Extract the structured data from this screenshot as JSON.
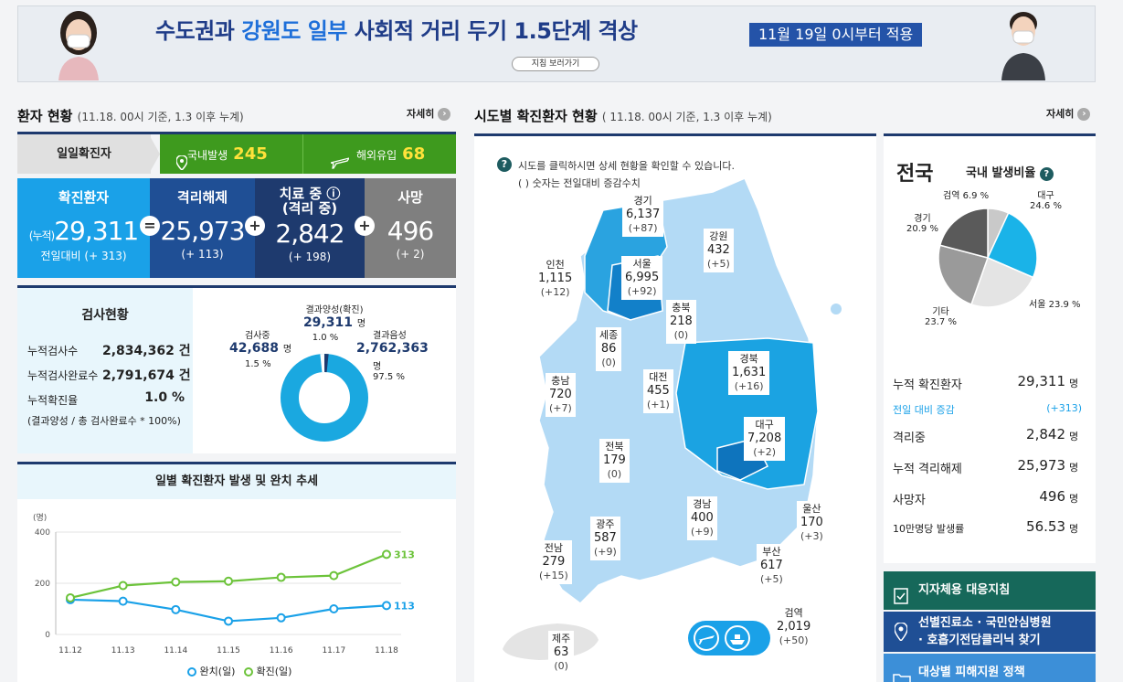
{
  "banner": {
    "title_a": "수도권과 ",
    "title_b": "강원도 일부",
    "title_c": " 사회적 거리 두기 1.5단계 격상",
    "date": "11월 19일 0시부터 적용",
    "button": "지침 보러가기"
  },
  "patient": {
    "title": "환자 현황",
    "sub": "(11.18. 00시 기준, 1.3 이후 누계)",
    "more": "자세히",
    "daily_label": "일일확진자",
    "domestic_label": "국내발생",
    "domestic_value": "245",
    "overseas_label": "해외유입",
    "overseas_value": "68"
  },
  "stats": [
    {
      "label": "확진환자",
      "prefix": "(누적)",
      "value": "29,311",
      "sub": "전일대비 (+ 313)",
      "color": "#1aa1e8"
    },
    {
      "label": "격리해제",
      "prefix": "",
      "value": "25,973",
      "sub": "(+ 113)",
      "color": "#1f4f95"
    },
    {
      "label": "치료 중 ⓘ",
      "label2": "(격리 중)",
      "prefix": "",
      "value": "2,842",
      "sub": "(+ 198)",
      "color": "#1e3a6e"
    },
    {
      "label": "사망",
      "prefix": "",
      "value": "496",
      "sub": "(+ 2)",
      "color": "#7f7f7f"
    }
  ],
  "operators": [
    "=",
    "+",
    "+"
  ],
  "tests": {
    "title": "검사현황",
    "rows": [
      {
        "label": "누적검사수",
        "value": "2,834,362 건"
      },
      {
        "label": "누적검사완료수",
        "value": "2,791,674 건"
      },
      {
        "label": "누적확진율",
        "value": "1.0 %"
      }
    ],
    "note": "(결과양성 / 총 검사완료수 * 100%)",
    "donut": {
      "positive_label": "결과양성(확진)",
      "positive_value": "29,311",
      "positive_unit": "명",
      "positive_pct": "1.0 %",
      "testing_label": "검사중",
      "testing_value": "42,688",
      "testing_unit": "명",
      "testing_pct": "1.5 %",
      "negative_label": "결과음성",
      "negative_value": "2,762,363",
      "negative_unit": "명",
      "negative_pct": "97.5 %"
    }
  },
  "trend": {
    "title": "일별 확진환자 발생 및 완치 추세",
    "yunit": "(명)",
    "legend_recovered": "완치(일)",
    "legend_confirmed": "확진(일)"
  },
  "chart_data": {
    "type": "line",
    "title": "일별 확진환자 발생 및 완치 추세",
    "x": [
      "11.12",
      "11.13",
      "11.14",
      "11.15",
      "11.16",
      "11.17",
      "11.18"
    ],
    "ylim": [
      0,
      400
    ],
    "yticks": [
      0,
      200,
      400
    ],
    "series": [
      {
        "name": "완치(일)",
        "color": "#1aa1e8",
        "values": [
          136,
          130,
          97,
          52,
          65,
          100,
          113
        ],
        "last_label": "113"
      },
      {
        "name": "확진(일)",
        "color": "#6cc33a",
        "values": [
          143,
          191,
          205,
          208,
          223,
          230,
          313
        ],
        "last_label": "313"
      }
    ]
  },
  "map": {
    "title": "시도별 확진환자 현황",
    "sub": "( 11.18. 00시 기준, 1.3 이후 누계)",
    "more": "자세히",
    "hint1": "시도를 클릭하시면 상세 현황을 확인할 수 있습니다.",
    "hint2": "( ) 숫자는 전일대비 증감수치",
    "regions": [
      {
        "name": "경기",
        "value": "6,137",
        "delta": "(+87)"
      },
      {
        "name": "강원",
        "value": "432",
        "delta": "(+5)"
      },
      {
        "name": "인천",
        "value": "1,115",
        "delta": "(+12)"
      },
      {
        "name": "서울",
        "value": "6,995",
        "delta": "(+92)"
      },
      {
        "name": "충북",
        "value": "218",
        "delta": "(0)"
      },
      {
        "name": "세종",
        "value": "86",
        "delta": "(0)"
      },
      {
        "name": "경북",
        "value": "1,631",
        "delta": "(+16)"
      },
      {
        "name": "충남",
        "value": "720",
        "delta": "(+7)"
      },
      {
        "name": "대전",
        "value": "455",
        "delta": "(+1)"
      },
      {
        "name": "대구",
        "value": "7,208",
        "delta": "(+2)"
      },
      {
        "name": "전북",
        "value": "179",
        "delta": "(0)"
      },
      {
        "name": "경남",
        "value": "400",
        "delta": "(+9)"
      },
      {
        "name": "울산",
        "value": "170",
        "delta": "(+3)"
      },
      {
        "name": "광주",
        "value": "587",
        "delta": "(+9)"
      },
      {
        "name": "전남",
        "value": "279",
        "delta": "(+15)"
      },
      {
        "name": "부산",
        "value": "617",
        "delta": "(+5)"
      },
      {
        "name": "검역",
        "value": "2,019",
        "delta": "(+50)"
      },
      {
        "name": "제주",
        "value": "63",
        "delta": "(0)"
      }
    ]
  },
  "national": {
    "title": "전국",
    "ratio_label": "국내 발생비율",
    "pie": [
      {
        "name": "검역",
        "pct": "6.9 %",
        "value": 6.9,
        "color": "#c9c9c9"
      },
      {
        "name": "대구",
        "pct": "24.6 %",
        "value": 24.6,
        "color": "#1ab3e8"
      },
      {
        "name": "서울",
        "pct": "23.9 %",
        "value": 23.9,
        "color": "#e4e4e4"
      },
      {
        "name": "기타",
        "pct": "23.7 %",
        "value": 23.7,
        "color": "#9a9a9a"
      },
      {
        "name": "경기",
        "pct": "20.9 %",
        "value": 20.9,
        "color": "#5a5a5a"
      }
    ],
    "rows": [
      {
        "label": "누적 확진환자",
        "value": "29,311",
        "unit": "명"
      },
      {
        "label": "전일 대비 증감",
        "value": "(+313)",
        "unit": ""
      },
      {
        "label": "격리중",
        "value": "2,842",
        "unit": "명"
      },
      {
        "label": "누적 격리해제",
        "value": "25,973",
        "unit": "명"
      },
      {
        "label": "사망자",
        "value": "496",
        "unit": "명"
      },
      {
        "label": "10만명당 발생률",
        "value": "56.53",
        "unit": "명"
      }
    ]
  },
  "links": [
    {
      "label": "지자체용 대응지침",
      "color": "#16685a"
    },
    {
      "label": "선별진료소 · 국민안심병원",
      "label2": "· 호흡기전담클리닉 찾기",
      "color": "#1f4f95"
    },
    {
      "label": "대상별 피해지원 정책",
      "color": "#3c8fd8"
    }
  ]
}
